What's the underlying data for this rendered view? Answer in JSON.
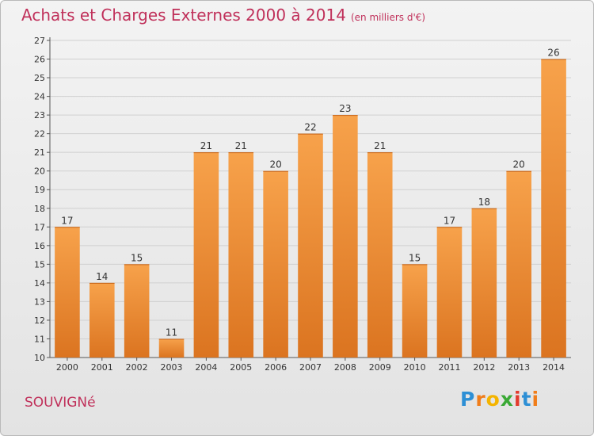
{
  "title": "Achats et Charges Externes 2000 à 2014",
  "subtitle": "(en milliers d'€)",
  "location": "SOUVIGNé",
  "logo": {
    "text": "Proxiti",
    "letters": [
      "P",
      "r",
      "o",
      "x",
      "i",
      "t",
      "i"
    ],
    "colors": [
      "#2d8fd5",
      "#f07d1a",
      "#f4b400",
      "#3aa935",
      "#e33b2e",
      "#2d8fd5",
      "#f07d1a"
    ]
  },
  "colors": {
    "title": "#c0305a",
    "bar_top": "#f7a24b",
    "bar_bottom": "#db7420",
    "grid": "#d0d0d0"
  },
  "chart_data": {
    "type": "bar",
    "title": "Achats et Charges Externes 2000 à 2014",
    "subtitle": "(en milliers d'€)",
    "xlabel": "",
    "ylabel": "",
    "categories": [
      "2000",
      "2001",
      "2002",
      "2003",
      "2004",
      "2005",
      "2006",
      "2007",
      "2008",
      "2009",
      "2010",
      "2011",
      "2012",
      "2013",
      "2014"
    ],
    "values": [
      17,
      14,
      15,
      11,
      21,
      21,
      20,
      22,
      23,
      21,
      15,
      17,
      18,
      20,
      26
    ],
    "ylim": [
      10,
      27
    ],
    "yticks": [
      10,
      11,
      12,
      13,
      14,
      15,
      16,
      17,
      18,
      19,
      20,
      21,
      22,
      23,
      24,
      25,
      26,
      27
    ],
    "grid": true,
    "legend": "none",
    "data_labels": true
  }
}
